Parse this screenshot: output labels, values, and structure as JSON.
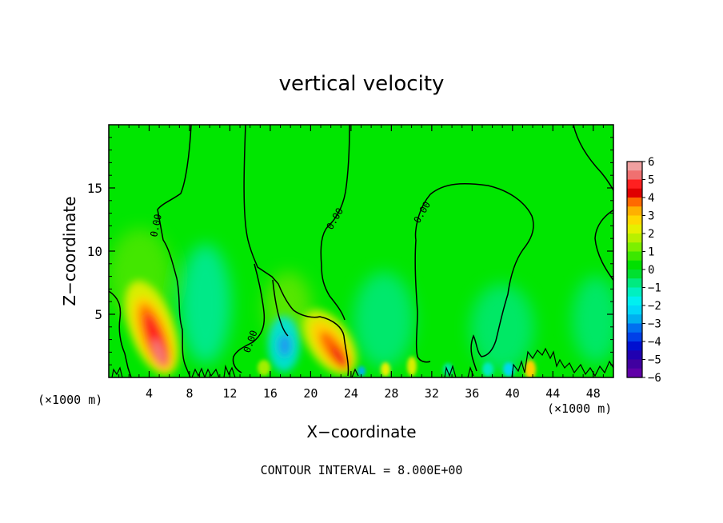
{
  "chart_data": {
    "type": "heatmap",
    "title": "vertical velocity",
    "xlabel": "X−coordinate",
    "ylabel": "Z−coordinate",
    "x_unit": "(×1000 m)",
    "z_unit": "(×1000 m)",
    "xlim": [
      0,
      50
    ],
    "ylim": [
      0,
      20
    ],
    "x_ticks": [
      "4",
      "8",
      "12",
      "16",
      "20",
      "24",
      "28",
      "32",
      "36",
      "40",
      "44",
      "48"
    ],
    "y_ticks": [
      "5",
      "10",
      "15"
    ],
    "contour_interval_text": "CONTOUR INTERVAL = 8.000E+00",
    "contour_labels": [
      "0.00",
      "0.00",
      "0.00"
    ],
    "colorbar": {
      "ticks": [
        "6",
        "5",
        "4",
        "3",
        "2",
        "1",
        "0",
        "−1",
        "−2",
        "−3",
        "−4",
        "−5",
        "−6"
      ],
      "range": [
        -6,
        6
      ],
      "colors": [
        "#f0a0a0",
        "#f07070",
        "#ff2020",
        "#e00000",
        "#ff6a00",
        "#ffb000",
        "#ffd800",
        "#e6f000",
        "#b8f000",
        "#7cf000",
        "#3ce800",
        "#00e000",
        "#00e030",
        "#00ea80",
        "#00f0c0",
        "#00f0f0",
        "#00d8f8",
        "#00b0f0",
        "#0070f0",
        "#0040e8",
        "#0010d0",
        "#2000b0",
        "#4000a0",
        "#6000a8"
      ]
    },
    "features": [
      {
        "kind": "updraft",
        "x": 5.0,
        "z": 2.5,
        "value": 5.5
      },
      {
        "kind": "updraft",
        "x": 22.5,
        "z": 2.0,
        "value": 4.5
      },
      {
        "kind": "updraft",
        "x": 14.5,
        "z": 4.0,
        "value": 1.5
      },
      {
        "kind": "updraft",
        "x": 41.5,
        "z": 0.8,
        "value": 2.5
      },
      {
        "kind": "downdraft",
        "x": 17.5,
        "z": 2.5,
        "value": -2.8
      },
      {
        "kind": "downdraft",
        "x": 9.5,
        "z": 6.0,
        "value": -1.2
      },
      {
        "kind": "downdraft",
        "x": 27.0,
        "z": 5.0,
        "value": -1.0
      },
      {
        "kind": "downdraft",
        "x": 39.0,
        "z": 4.5,
        "value": -1.0
      },
      {
        "kind": "downdraft",
        "x": 48.0,
        "z": 5.0,
        "value": -1.0
      }
    ]
  }
}
